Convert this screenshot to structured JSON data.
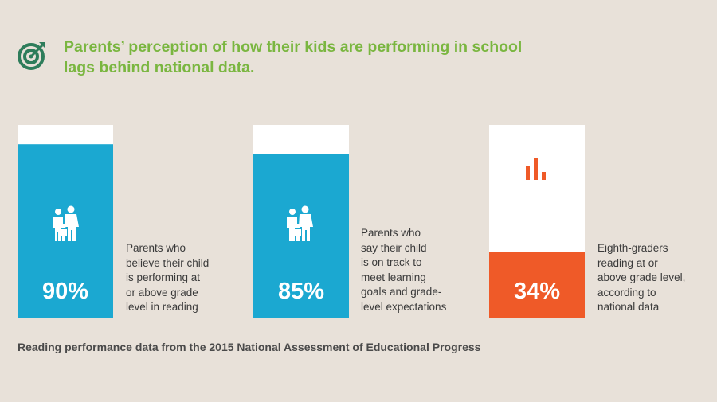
{
  "header": {
    "title_lines": [
      "Parents’ perception of how their kids are performing in school",
      "lags behind national data."
    ]
  },
  "colors": {
    "accent_green": "#7ab640",
    "blue": "#1ba8d1",
    "orange": "#ef5a28",
    "white": "#ffffff",
    "background": "#e8e1d9"
  },
  "icons": [
    "target-icon",
    "family-icon",
    "family-icon",
    "bar-chart-icon"
  ],
  "chart_data": {
    "type": "bar",
    "ylim": [
      0,
      100
    ],
    "categories": [
      "Parents who believe their child is performing at or above grade level in reading",
      "Parents who say their child is on track to meet learning goals and grade-level expectations",
      "Eighth-graders reading at or above grade level, according to national data"
    ],
    "values": [
      90,
      85,
      34
    ],
    "labels": [
      "90%",
      "85%",
      "34%"
    ],
    "colors": [
      "#1ba8d1",
      "#1ba8d1",
      "#ef5a28"
    ],
    "caption_lines": [
      [
        "Parents who",
        "believe their child",
        "is performing at",
        "or above grade",
        "level in reading"
      ],
      [
        "Parents who",
        "say their child",
        "is on track to",
        "meet learning",
        "goals and grade-",
        "level expectations"
      ],
      [
        "Eighth-graders",
        "reading at or",
        "above grade level,",
        "according to",
        "national data"
      ]
    ]
  },
  "footnote": "Reading performance data from the 2015 National Assessment of Educational Progress"
}
